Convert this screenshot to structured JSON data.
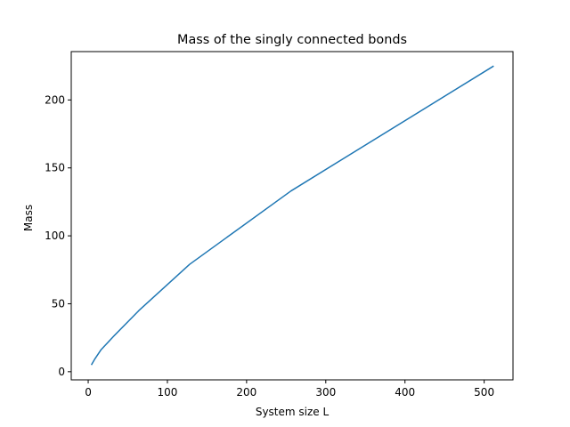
{
  "chart_data": {
    "type": "line",
    "title": "Mass of the singly connected bonds",
    "xlabel": "System size L",
    "ylabel": "Mass",
    "xlim": [
      -21.4,
      536.4
    ],
    "ylim": [
      -6.0,
      235.6
    ],
    "xticks": [
      0,
      100,
      200,
      300,
      400,
      500
    ],
    "yticks": [
      0,
      50,
      100,
      150,
      200
    ],
    "grid": false,
    "legend": "none",
    "series": [
      {
        "color": "#1f77b4",
        "x": [
          4,
          8,
          16,
          32,
          64,
          128,
          256,
          512
        ],
        "y": [
          5,
          9,
          16,
          26,
          45,
          79,
          133,
          225
        ]
      }
    ]
  }
}
